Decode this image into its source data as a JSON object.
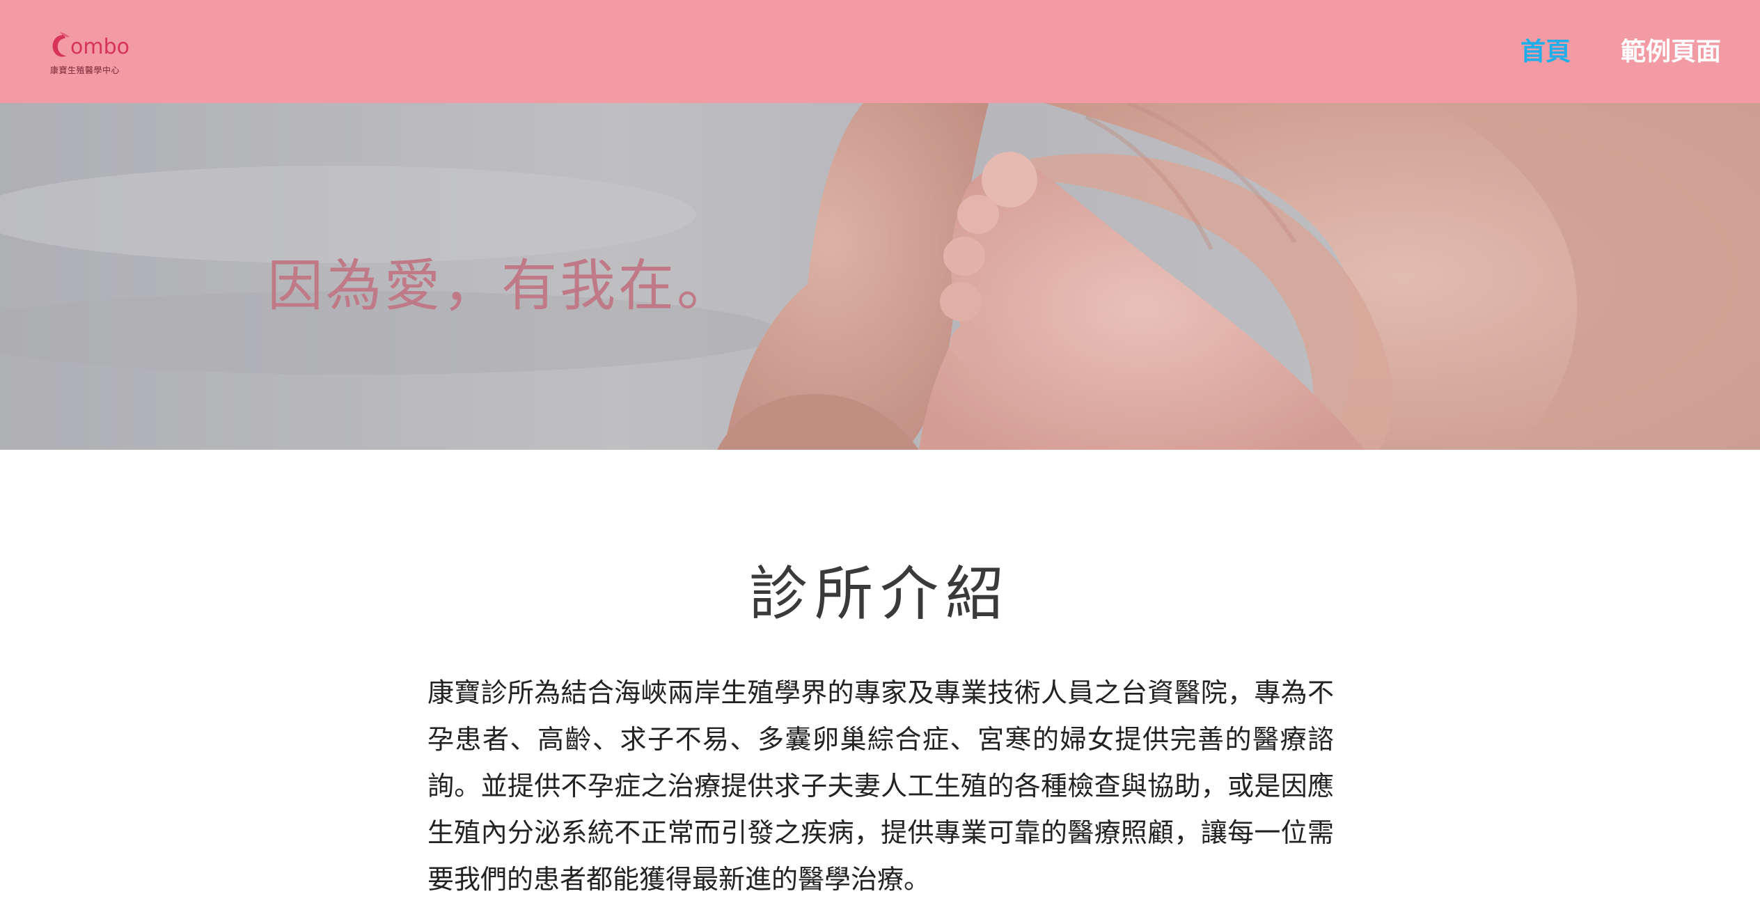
{
  "header": {
    "logo": {
      "wordmark": "ombo",
      "subtitle": "康寶生殖醫學中心",
      "brand_color": "#d8335a"
    },
    "nav": [
      {
        "label": "首頁",
        "active": true
      },
      {
        "label": "範例頁面",
        "active": false
      }
    ],
    "background_color": "#f29ba5",
    "active_color": "#1faee9"
  },
  "hero": {
    "tagline": "因為愛，有我在。",
    "image_description_icon": "baby-foot-in-hands-photo"
  },
  "main": {
    "section_title": "診所介紹",
    "intro": "康寶診所為結合海峽兩岸生殖學界的專家及專業技術人員之台資醫院，專為不孕患者、高齡、求子不易、多囊卵巢綜合症、宮寒的婦女提供完善的醫療諮詢。並提供不孕症之治療提供求子夫妻人工生殖的各種檢查與協助，或是因應生殖內分泌系統不正常而引發之疾病，提供專業可靠的醫療照顧，讓每一位需要我們的患者都能獲得最新進的醫學治療。"
  }
}
